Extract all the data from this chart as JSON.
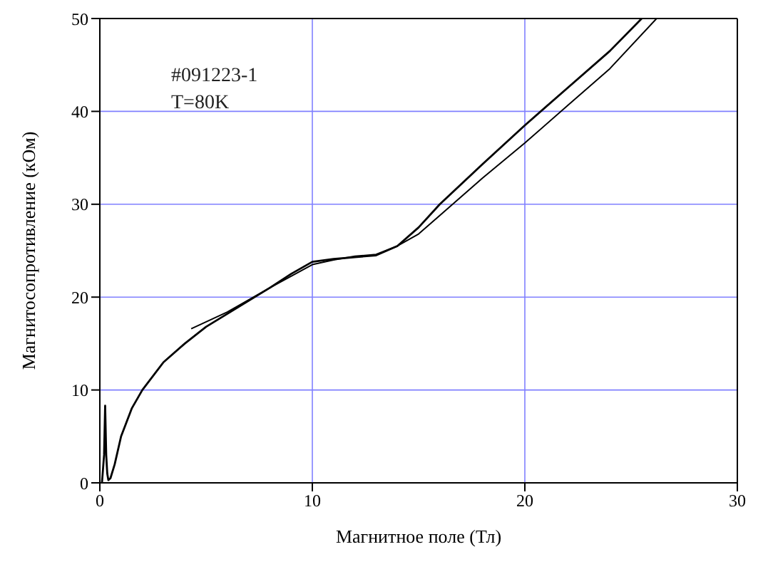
{
  "chart_data": {
    "type": "line",
    "xlabel": "Магнитное поле (Тл)",
    "ylabel": "Магнитосопротивление (кОм)",
    "annotations": [
      "#091223-1",
      "T=80K"
    ],
    "xlim": [
      0,
      30
    ],
    "xticks": [
      0,
      10,
      20,
      30
    ],
    "ylim": [
      0,
      50
    ],
    "yticks": [
      0,
      10,
      20,
      30,
      40,
      50
    ],
    "grid": true,
    "marker": "none",
    "line_style": "solid",
    "series": [
      {
        "color": "#000000",
        "x": [
          0.1,
          0.2,
          0.25,
          0.3,
          0.35,
          0.4,
          0.5,
          0.7,
          1,
          1.5,
          2,
          3,
          4,
          5,
          6,
          7,
          8,
          9,
          10,
          11,
          12,
          13,
          14,
          15,
          16,
          18,
          20,
          22,
          24,
          25.5
        ],
        "values": [
          0,
          3,
          8.3,
          3,
          1,
          0.3,
          0.5,
          2,
          5,
          8,
          10,
          13,
          15,
          16.8,
          18.2,
          19.6,
          21,
          22.5,
          23.8,
          24.1,
          24.3,
          24.5,
          25.5,
          27.5,
          30,
          34.3,
          38.5,
          42.5,
          46.5,
          50
        ]
      },
      {
        "color": "#000000",
        "x": [
          4.3,
          6,
          8,
          10,
          11,
          12,
          13,
          14,
          15,
          16,
          18,
          20,
          22,
          24,
          26.2
        ],
        "values": [
          16.6,
          18.4,
          21,
          23.5,
          24,
          24.4,
          24.6,
          25.5,
          26.8,
          28.8,
          32.8,
          36.6,
          40.6,
          44.6,
          50
        ]
      }
    ]
  }
}
